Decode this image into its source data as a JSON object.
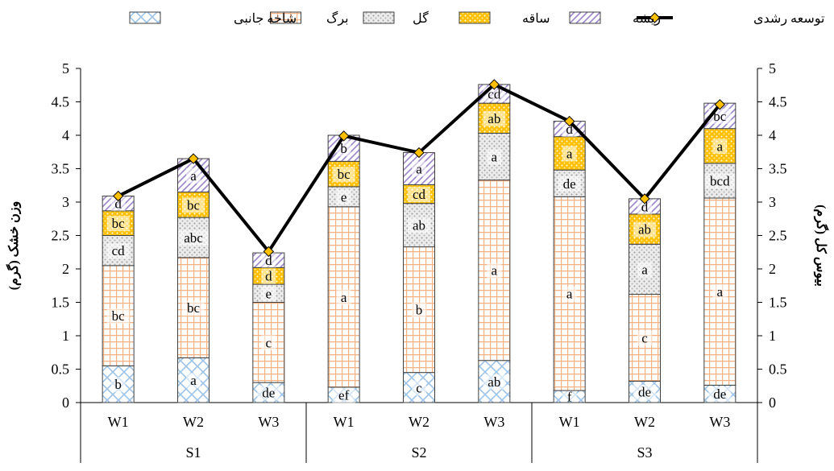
{
  "chart_data": {
    "type": "bar",
    "stacked": true,
    "groups": [
      "S1",
      "S2",
      "S3"
    ],
    "categories": [
      "W1",
      "W2",
      "W3",
      "W1",
      "W2",
      "W3",
      "W1",
      "W2",
      "W3"
    ],
    "series": [
      {
        "name": "شاخه جانبی",
        "color": "#9dc3e6",
        "pattern": "crosshatch",
        "values": [
          0.55,
          0.67,
          0.3,
          0.23,
          0.45,
          0.63,
          0.18,
          0.32,
          0.26
        ],
        "labels": [
          "b",
          "a",
          "de",
          "ef",
          "c",
          "ab",
          "f",
          "de",
          "de"
        ]
      },
      {
        "name": "برگ",
        "color": "#f4b183",
        "pattern": "grid",
        "values": [
          1.5,
          1.5,
          1.2,
          2.7,
          1.88,
          2.7,
          2.9,
          1.3,
          2.8
        ],
        "labels": [
          "bc",
          "bc",
          "c",
          "a",
          "b",
          "a",
          "a",
          "c",
          "a"
        ]
      },
      {
        "name": "گل",
        "color": "#c0c0c0",
        "pattern": "dots",
        "values": [
          0.45,
          0.6,
          0.27,
          0.3,
          0.65,
          0.7,
          0.4,
          0.75,
          0.52
        ],
        "labels": [
          "cd",
          "abc",
          "e",
          "e",
          "ab",
          "a",
          "de",
          "a",
          "bcd"
        ]
      },
      {
        "name": "ساقه",
        "color": "#ffc000",
        "pattern": "dots",
        "values": [
          0.37,
          0.38,
          0.25,
          0.38,
          0.28,
          0.45,
          0.5,
          0.45,
          0.52
        ],
        "labels": [
          "bc",
          "bc",
          "d",
          "bc",
          "cd",
          "ab",
          "a",
          "ab",
          "a"
        ]
      },
      {
        "name": "ریشه",
        "color": "#b4a7d6",
        "pattern": "diagonal",
        "values": [
          0.22,
          0.5,
          0.22,
          0.39,
          0.48,
          0.28,
          0.23,
          0.23,
          0.38
        ],
        "labels": [
          "d",
          "a",
          "d",
          "b",
          "a",
          "cd",
          "d",
          "d",
          "bc"
        ]
      }
    ],
    "line": {
      "name": "توسعه رشدی",
      "color": "#000000",
      "marker_color": "#ffc000",
      "values": [
        3.09,
        3.65,
        2.26,
        3.99,
        3.74,
        4.76,
        4.21,
        3.05,
        4.46
      ]
    },
    "ylim": [
      0,
      5
    ],
    "y_ticks": [
      "0",
      "0.5",
      "1",
      "1.5",
      "2",
      "2.5",
      "3",
      "3.5",
      "4",
      "4.5",
      "5"
    ],
    "ylabel": "وزن خشک (گرم)",
    "y2label": "بیوس کل (گرم)",
    "legend_position": "top"
  }
}
